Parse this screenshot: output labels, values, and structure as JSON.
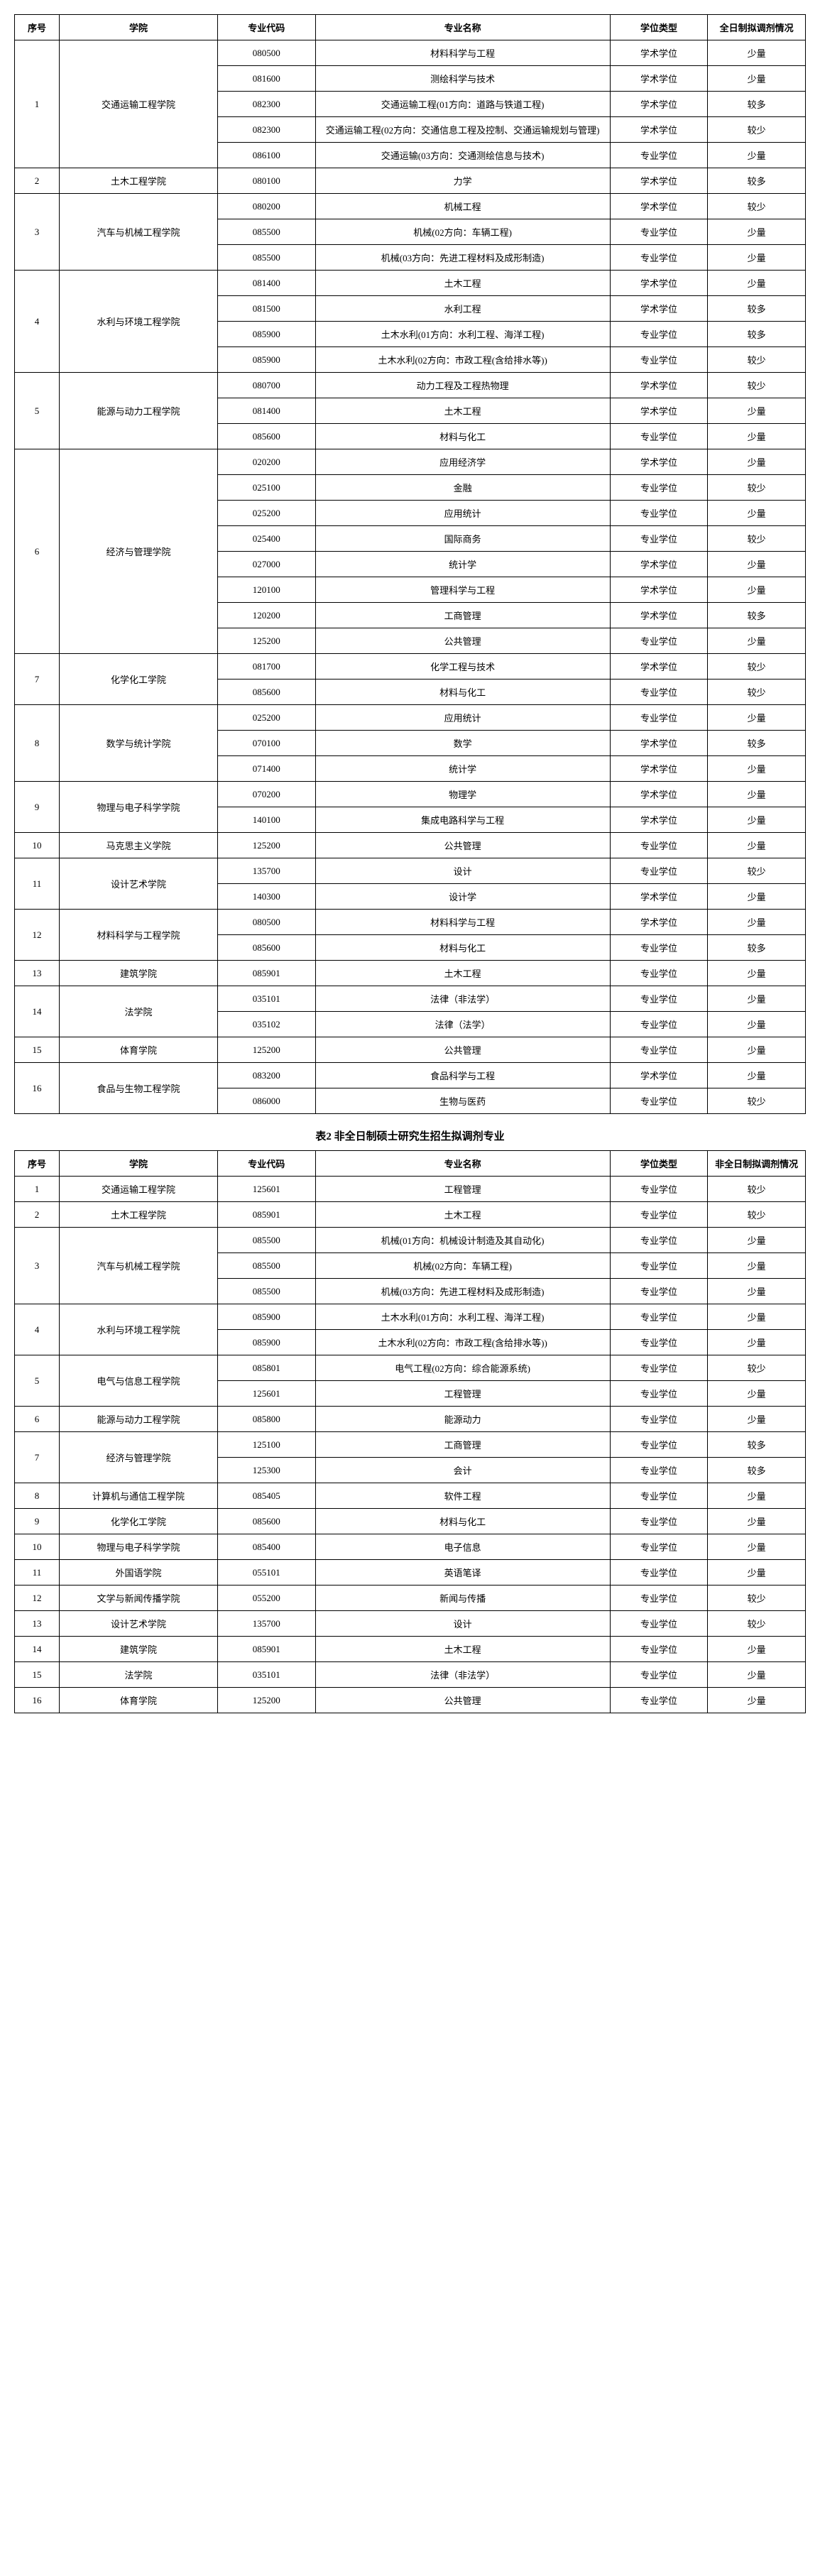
{
  "table1": {
    "headers": {
      "seq": "序号",
      "school": "学院",
      "code": "专业代码",
      "name": "专业名称",
      "type": "学位类型",
      "status": "全日制拟调剂情况"
    },
    "rows": [
      {
        "seq": "1",
        "school": "交通运输工程学院",
        "rowspan": 5,
        "code": "080500",
        "name": "材料科学与工程",
        "type": "学术学位",
        "status": "少量"
      },
      {
        "code": "081600",
        "name": "测绘科学与技术",
        "type": "学术学位",
        "status": "少量"
      },
      {
        "code": "082300",
        "name": "交通运输工程(01方向：道路与铁道工程)",
        "type": "学术学位",
        "status": "较多"
      },
      {
        "code": "082300",
        "name": "交通运输工程(02方向：交通信息工程及控制、交通运输规划与管理)",
        "type": "学术学位",
        "status": "较少"
      },
      {
        "code": "086100",
        "name": "交通运输(03方向：交通测绘信息与技术)",
        "type": "专业学位",
        "status": "少量"
      },
      {
        "seq": "2",
        "school": "土木工程学院",
        "rowspan": 1,
        "code": "080100",
        "name": "力学",
        "type": "学术学位",
        "status": "较多"
      },
      {
        "seq": "3",
        "school": "汽车与机械工程学院",
        "rowspan": 3,
        "code": "080200",
        "name": "机械工程",
        "type": "学术学位",
        "status": "较少"
      },
      {
        "code": "085500",
        "name": "机械(02方向：车辆工程)",
        "type": "专业学位",
        "status": "少量"
      },
      {
        "code": "085500",
        "name": "机械(03方向：先进工程材料及成形制造)",
        "type": "专业学位",
        "status": "少量"
      },
      {
        "seq": "4",
        "school": "水利与环境工程学院",
        "rowspan": 4,
        "code": "081400",
        "name": "土木工程",
        "type": "学术学位",
        "status": "少量"
      },
      {
        "code": "081500",
        "name": "水利工程",
        "type": "学术学位",
        "status": "较多"
      },
      {
        "code": "085900",
        "name": "土木水利(01方向：水利工程、海洋工程)",
        "type": "专业学位",
        "status": "较多"
      },
      {
        "code": "085900",
        "name": "土木水利(02方向：市政工程(含给排水等))",
        "type": "专业学位",
        "status": "较少"
      },
      {
        "seq": "5",
        "school": "能源与动力工程学院",
        "rowspan": 3,
        "code": "080700",
        "name": "动力工程及工程热物理",
        "type": "学术学位",
        "status": "较少"
      },
      {
        "code": "081400",
        "name": "土木工程",
        "type": "学术学位",
        "status": "少量"
      },
      {
        "code": "085600",
        "name": "材料与化工",
        "type": "专业学位",
        "status": "少量"
      },
      {
        "seq": "6",
        "school": "经济与管理学院",
        "rowspan": 8,
        "code": "020200",
        "name": "应用经济学",
        "type": "学术学位",
        "status": "少量"
      },
      {
        "code": "025100",
        "name": "金融",
        "type": "专业学位",
        "status": "较少"
      },
      {
        "code": "025200",
        "name": "应用统计",
        "type": "专业学位",
        "status": "少量"
      },
      {
        "code": "025400",
        "name": "国际商务",
        "type": "专业学位",
        "status": "较少"
      },
      {
        "code": "027000",
        "name": "统计学",
        "type": "学术学位",
        "status": "少量"
      },
      {
        "code": "120100",
        "name": "管理科学与工程",
        "type": "学术学位",
        "status": "少量"
      },
      {
        "code": "120200",
        "name": "工商管理",
        "type": "学术学位",
        "status": "较多"
      },
      {
        "code": "125200",
        "name": "公共管理",
        "type": "专业学位",
        "status": "少量"
      },
      {
        "seq": "7",
        "school": "化学化工学院",
        "rowspan": 2,
        "code": "081700",
        "name": "化学工程与技术",
        "type": "学术学位",
        "status": "较少"
      },
      {
        "code": "085600",
        "name": "材料与化工",
        "type": "专业学位",
        "status": "较少"
      },
      {
        "seq": "8",
        "school": "数学与统计学院",
        "rowspan": 3,
        "code": "025200",
        "name": "应用统计",
        "type": "专业学位",
        "status": "少量"
      },
      {
        "code": "070100",
        "name": "数学",
        "type": "学术学位",
        "status": "较多"
      },
      {
        "code": "071400",
        "name": "统计学",
        "type": "学术学位",
        "status": "少量"
      },
      {
        "seq": "9",
        "school": "物理与电子科学学院",
        "rowspan": 2,
        "code": "070200",
        "name": "物理学",
        "type": "学术学位",
        "status": "少量"
      },
      {
        "code": "140100",
        "name": "集成电路科学与工程",
        "type": "学术学位",
        "status": "少量"
      },
      {
        "seq": "10",
        "school": "马克思主义学院",
        "rowspan": 1,
        "code": "125200",
        "name": "公共管理",
        "type": "专业学位",
        "status": "少量"
      },
      {
        "seq": "11",
        "school": "设计艺术学院",
        "rowspan": 2,
        "code": "135700",
        "name": "设计",
        "type": "专业学位",
        "status": "较少"
      },
      {
        "code": "140300",
        "name": "设计学",
        "type": "学术学位",
        "status": "少量"
      },
      {
        "seq": "12",
        "school": "材料科学与工程学院",
        "rowspan": 2,
        "code": "080500",
        "name": "材料科学与工程",
        "type": "学术学位",
        "status": "少量"
      },
      {
        "code": "085600",
        "name": "材料与化工",
        "type": "专业学位",
        "status": "较多"
      },
      {
        "seq": "13",
        "school": "建筑学院",
        "rowspan": 1,
        "code": "085901",
        "name": "土木工程",
        "type": "专业学位",
        "status": "少量"
      },
      {
        "seq": "14",
        "school": "法学院",
        "rowspan": 2,
        "code": "035101",
        "name": "法律（非法学）",
        "type": "专业学位",
        "status": "少量"
      },
      {
        "code": "035102",
        "name": "法律（法学）",
        "type": "专业学位",
        "status": "少量"
      },
      {
        "seq": "15",
        "school": "体育学院",
        "rowspan": 1,
        "code": "125200",
        "name": "公共管理",
        "type": "专业学位",
        "status": "少量"
      },
      {
        "seq": "16",
        "school": "食品与生物工程学院",
        "rowspan": 2,
        "code": "083200",
        "name": "食品科学与工程",
        "type": "学术学位",
        "status": "少量"
      },
      {
        "code": "086000",
        "name": "生物与医药",
        "type": "专业学位",
        "status": "较少"
      }
    ]
  },
  "table2": {
    "title": "表2  非全日制硕士研究生招生拟调剂专业",
    "headers": {
      "seq": "序号",
      "school": "学院",
      "code": "专业代码",
      "name": "专业名称",
      "type": "学位类型",
      "status": "非全日制拟调剂情况"
    },
    "rows": [
      {
        "seq": "1",
        "school": "交通运输工程学院",
        "rowspan": 1,
        "code": "125601",
        "name": "工程管理",
        "type": "专业学位",
        "status": "较少"
      },
      {
        "seq": "2",
        "school": "土木工程学院",
        "rowspan": 1,
        "code": "085901",
        "name": "土木工程",
        "type": "专业学位",
        "status": "较少"
      },
      {
        "seq": "3",
        "school": "汽车与机械工程学院",
        "rowspan": 3,
        "code": "085500",
        "name": "机械(01方向：机械设计制造及其自动化)",
        "type": "专业学位",
        "status": "少量"
      },
      {
        "code": "085500",
        "name": "机械(02方向：车辆工程)",
        "type": "专业学位",
        "status": "少量"
      },
      {
        "code": "085500",
        "name": "机械(03方向：先进工程材料及成形制造)",
        "type": "专业学位",
        "status": "少量"
      },
      {
        "seq": "4",
        "school": "水利与环境工程学院",
        "rowspan": 2,
        "code": "085900",
        "name": "土木水利(01方向：水利工程、海洋工程)",
        "type": "专业学位",
        "status": "少量"
      },
      {
        "code": "085900",
        "name": "土木水利(02方向：市政工程(含给排水等))",
        "type": "专业学位",
        "status": "少量"
      },
      {
        "seq": "5",
        "school": "电气与信息工程学院",
        "rowspan": 2,
        "code": "085801",
        "name": "电气工程(02方向：综合能源系统)",
        "type": "专业学位",
        "status": "较少"
      },
      {
        "code": "125601",
        "name": "工程管理",
        "type": "专业学位",
        "status": "少量"
      },
      {
        "seq": "6",
        "school": "能源与动力工程学院",
        "rowspan": 1,
        "code": "085800",
        "name": "能源动力",
        "type": "专业学位",
        "status": "少量"
      },
      {
        "seq": "7",
        "school": "经济与管理学院",
        "rowspan": 2,
        "code": "125100",
        "name": "工商管理",
        "type": "专业学位",
        "status": "较多"
      },
      {
        "code": "125300",
        "name": "会计",
        "type": "专业学位",
        "status": "较多"
      },
      {
        "seq": "8",
        "school": "计算机与通信工程学院",
        "rowspan": 1,
        "code": "085405",
        "name": "软件工程",
        "type": "专业学位",
        "status": "少量"
      },
      {
        "seq": "9",
        "school": "化学化工学院",
        "rowspan": 1,
        "code": "085600",
        "name": "材料与化工",
        "type": "专业学位",
        "status": "少量"
      },
      {
        "seq": "10",
        "school": "物理与电子科学学院",
        "rowspan": 1,
        "code": "085400",
        "name": "电子信息",
        "type": "专业学位",
        "status": "少量"
      },
      {
        "seq": "11",
        "school": "外国语学院",
        "rowspan": 1,
        "code": "055101",
        "name": "英语笔译",
        "type": "专业学位",
        "status": "少量"
      },
      {
        "seq": "12",
        "school": "文学与新闻传播学院",
        "rowspan": 1,
        "code": "055200",
        "name": "新闻与传播",
        "type": "专业学位",
        "status": "较少"
      },
      {
        "seq": "13",
        "school": "设计艺术学院",
        "rowspan": 1,
        "code": "135700",
        "name": "设计",
        "type": "专业学位",
        "status": "较少"
      },
      {
        "seq": "14",
        "school": "建筑学院",
        "rowspan": 1,
        "code": "085901",
        "name": "土木工程",
        "type": "专业学位",
        "status": "少量"
      },
      {
        "seq": "15",
        "school": "法学院",
        "rowspan": 1,
        "code": "035101",
        "name": "法律（非法学）",
        "type": "专业学位",
        "status": "少量"
      },
      {
        "seq": "16",
        "school": "体育学院",
        "rowspan": 1,
        "code": "125200",
        "name": "公共管理",
        "type": "专业学位",
        "status": "少量"
      }
    ]
  }
}
